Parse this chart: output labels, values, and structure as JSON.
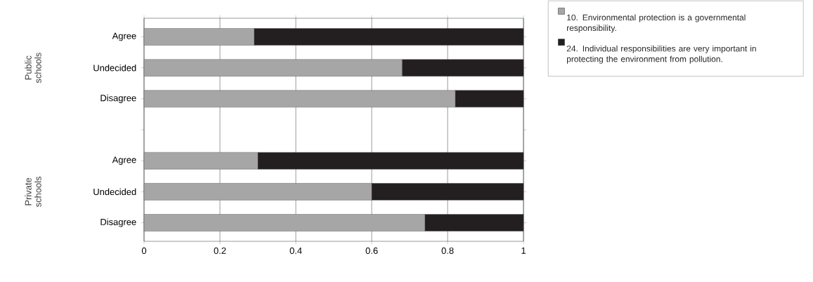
{
  "chart_data": {
    "type": "bar",
    "orientation": "horizontal",
    "stacked": true,
    "categories": [
      "Agree",
      "Undecided",
      "Disagree",
      null,
      "Agree",
      "Undecided",
      "Disagree"
    ],
    "series": [
      {
        "name": "10.  Environmental protection is a governmental responsibility.",
        "color": "#a6a6a6",
        "values": [
          0.29,
          0.68,
          0.82,
          null,
          0.3,
          0.6,
          0.74
        ]
      },
      {
        "name": "24. Individual responsibilities are very important in protecting the environment from pollution.",
        "color": "#231f20",
        "values": [
          0.71,
          0.32,
          0.18,
          null,
          0.7,
          0.4,
          0.26
        ]
      }
    ],
    "annotations": [
      "Public schools",
      "Private schools"
    ],
    "xlim": [
      0,
      1
    ],
    "xticks": [
      0,
      0.2,
      0.4,
      0.6,
      0.8,
      1
    ],
    "grid": "x",
    "legend": "top right"
  }
}
